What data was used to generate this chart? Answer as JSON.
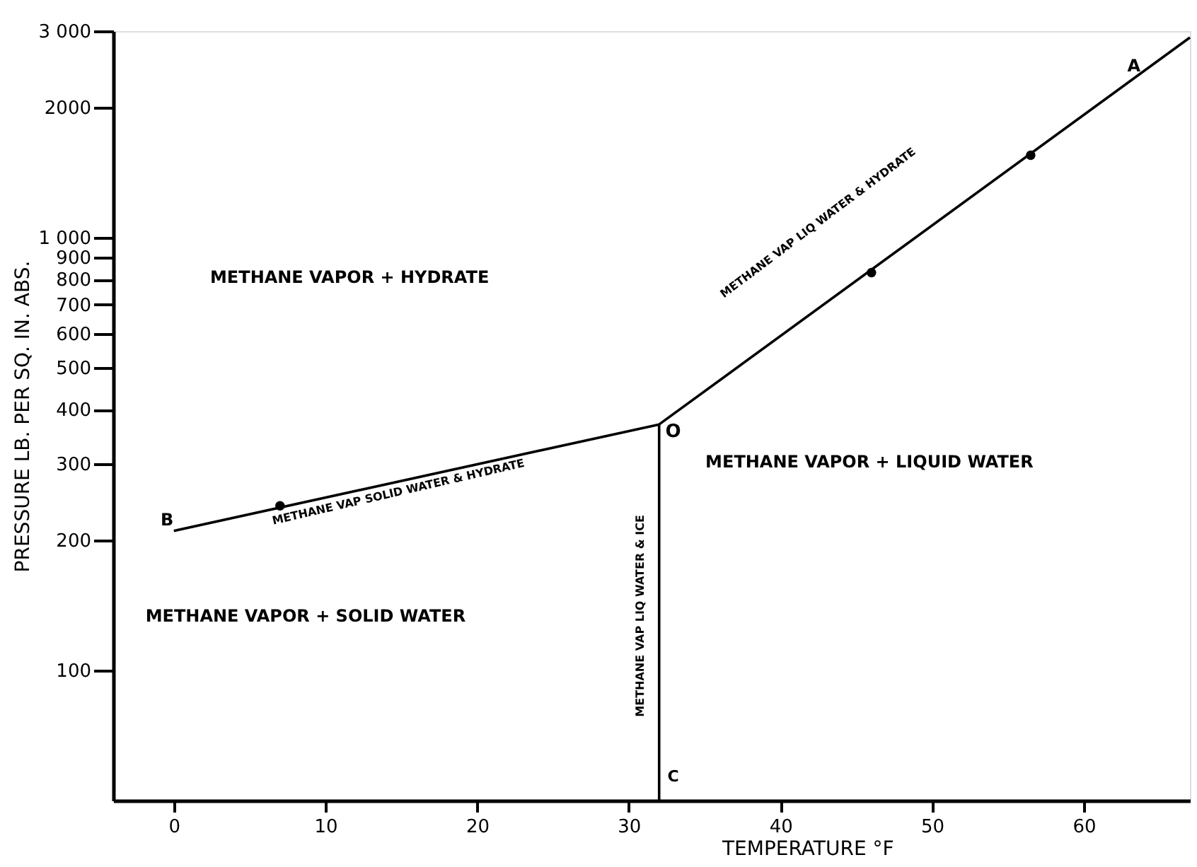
{
  "chart_data": {
    "type": "line",
    "xlabel": "TEMPERATURE °F",
    "ylabel": "PRESSURE LB. PER SQ. IN. ABS.",
    "xlim": [
      -4,
      67
    ],
    "xticks": [
      0,
      10,
      20,
      30,
      40,
      50,
      60
    ],
    "ylim": [
      50,
      3000
    ],
    "yticks": [
      100,
      200,
      300,
      400,
      500,
      600,
      700,
      800,
      900,
      {
        "value": 1000,
        "label": "1 000"
      },
      2000,
      {
        "value": 3000,
        "label": "3 000"
      }
    ],
    "log": true,
    "grid": false,
    "line_style": "solid",
    "marker": "none",
    "series": [
      {
        "color": "#000000",
        "x": [
          0,
          32,
          67
        ],
        "values": [
          210,
          370,
          2900
        ]
      },
      {
        "color": "#000000",
        "x": [
          32,
          32
        ],
        "values": [
          370,
          50
        ]
      },
      {
        "type": "scatter",
        "marker": "circle",
        "color": "#000000",
        "x": [
          7,
          46,
          56.5
        ],
        "values": [
          240,
          830,
          1550
        ]
      }
    ],
    "annotations": [
      "METHANE VAPOR + HYDRATE",
      "METHANE VAPOR + LIQUID WATER",
      "METHANE VAPOR + SOLID WATER",
      "METHANE VAP SOLID WATER & HYDRATE",
      "METHANE VAP LIQ WATER & HYDRATE",
      "METHANE VAP LIQ WATER & ICE",
      "B",
      "O",
      "A",
      "C"
    ]
  }
}
